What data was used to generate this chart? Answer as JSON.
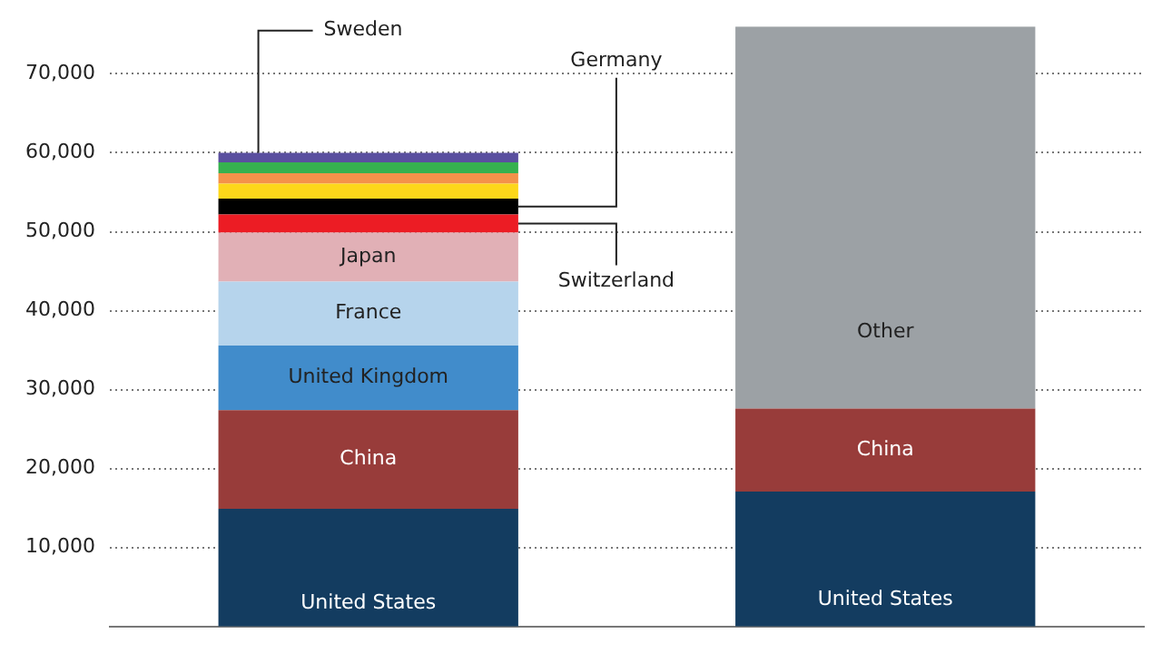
{
  "chart_data": {
    "type": "bar",
    "stacked": true,
    "categories": [
      null,
      null
    ],
    "series": [
      {
        "name": "United States",
        "color": "#133c60",
        "values": [
          14900,
          17100
        ]
      },
      {
        "name": "China",
        "color": "#983c3a",
        "values": [
          12500,
          10500
        ]
      },
      {
        "name": "United Kingdom",
        "color": "#418ccb",
        "values": [
          8200,
          null
        ]
      },
      {
        "name": "France",
        "color": "#b6d4ec",
        "values": [
          8100,
          null
        ]
      },
      {
        "name": "Japan",
        "color": "#e1b0b6",
        "values": [
          6200,
          null
        ]
      },
      {
        "name": "Switzerland",
        "color": "#ec1c24",
        "values": [
          2300,
          null
        ]
      },
      {
        "name": "Germany",
        "color": "#000000",
        "values": [
          2000,
          null
        ]
      },
      {
        "color": "#fdd71a",
        "values": [
          1900,
          null
        ]
      },
      {
        "color": "#f4924a",
        "values": [
          1300,
          null
        ]
      },
      {
        "color": "#36b14f",
        "values": [
          1400,
          null
        ]
      },
      {
        "name": "Sweden",
        "color": "#5a4f9f",
        "values": [
          1200,
          null
        ]
      },
      {
        "name": "Other",
        "color": "#9ca1a5",
        "values": [
          null,
          48400
        ]
      }
    ],
    "ylim": [
      0,
      76000
    ],
    "yticks": [
      {
        "value": 10000,
        "label": "10,000"
      },
      {
        "value": 20000,
        "label": "20,000"
      },
      {
        "value": 30000,
        "label": "30,000"
      },
      {
        "value": 40000,
        "label": "40,000"
      },
      {
        "value": 50000,
        "label": "50,000"
      },
      {
        "value": 60000,
        "label": "60,000"
      },
      {
        "value": 70000,
        "label": "70,000"
      }
    ],
    "grid": "y",
    "legend": false
  }
}
